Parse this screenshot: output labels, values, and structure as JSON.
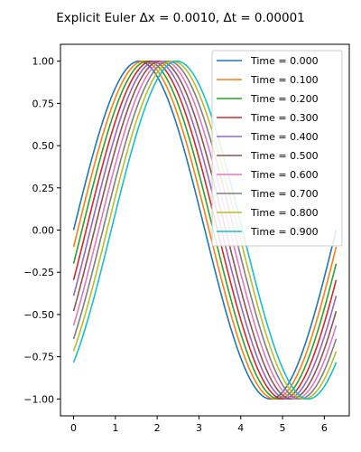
{
  "chart_data": {
    "type": "line",
    "title": "Explicit Euler Δx = 0.0010, Δt = 0.00001",
    "xlabel": "",
    "ylabel": "",
    "xlim": [
      -0.314,
      6.597
    ],
    "ylim": [
      -1.1,
      1.1
    ],
    "x_range": [
      0,
      6.283
    ],
    "xticks": [
      0,
      1,
      2,
      3,
      4,
      5,
      6
    ],
    "xtick_labels": [
      "0",
      "1",
      "2",
      "3",
      "4",
      "5",
      "6"
    ],
    "yticks": [
      1.0,
      0.75,
      0.5,
      0.25,
      0.0,
      -0.25,
      -0.5,
      -0.75,
      -1.0
    ],
    "ytick_labels": [
      "1.00",
      "0.75",
      "0.50",
      "0.25",
      "0.00",
      "−0.25",
      "−0.50",
      "−0.75",
      "−1.00"
    ],
    "grid": false,
    "legend_position": "top-right",
    "series": [
      {
        "name": "Time = 0.000",
        "shift": 0.0,
        "color": "#1f77b4"
      },
      {
        "name": "Time = 0.100",
        "shift": 0.1,
        "color": "#ff7f0e"
      },
      {
        "name": "Time = 0.200",
        "shift": 0.2,
        "color": "#2ca02c"
      },
      {
        "name": "Time = 0.300",
        "shift": 0.3,
        "color": "#d62728"
      },
      {
        "name": "Time = 0.400",
        "shift": 0.4,
        "color": "#9467bd"
      },
      {
        "name": "Time = 0.500",
        "shift": 0.5,
        "color": "#8c564b"
      },
      {
        "name": "Time = 0.600",
        "shift": 0.6,
        "color": "#e377c2"
      },
      {
        "name": "Time = 0.700",
        "shift": 0.7,
        "color": "#7f7f7f"
      },
      {
        "name": "Time = 0.800",
        "shift": 0.8,
        "color": "#bcbd22"
      },
      {
        "name": "Time = 0.900",
        "shift": 0.9,
        "color": "#17becf"
      }
    ],
    "function": "y = sin(x - Time)"
  }
}
